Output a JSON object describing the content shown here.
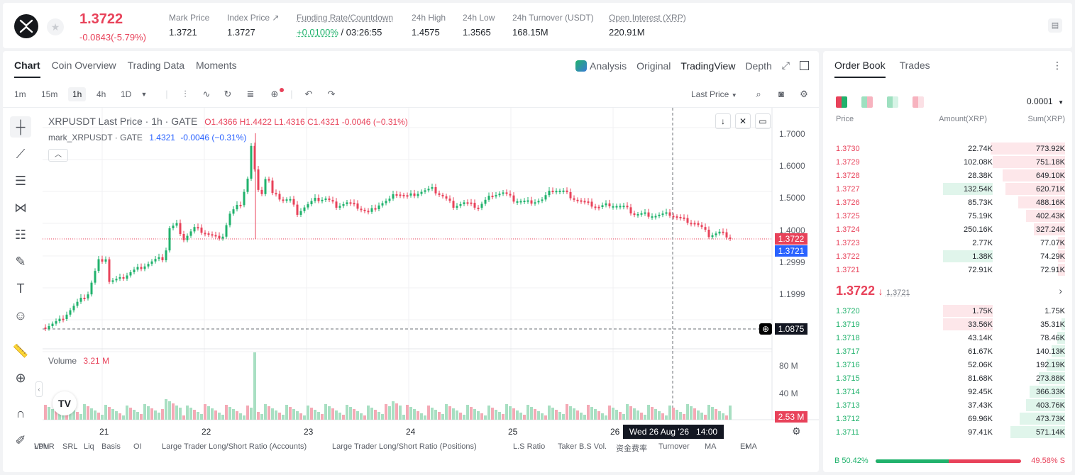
{
  "header": {
    "price": "1.3722",
    "change": "-0.0843(-5.79%)",
    "stats": [
      {
        "label": "Mark Price",
        "value": "1.3721"
      },
      {
        "label": "Index Price ↗",
        "value": "1.3727"
      },
      {
        "label": "Funding Rate/Countdown",
        "value": "+0.0100%",
        "value2": "/ 03:26:55"
      },
      {
        "label": "24h High",
        "value": "1.4575"
      },
      {
        "label": "24h Low",
        "value": "1.3565"
      },
      {
        "label": "24h Turnover (USDT)",
        "value": "168.15M"
      },
      {
        "label": "Open Interest (XRP)",
        "value": "220.91M"
      }
    ]
  },
  "tabs": [
    "Chart",
    "Coin Overview",
    "Trading Data",
    "Moments"
  ],
  "view_tabs": [
    "Analysis",
    "Original",
    "TradingView",
    "Depth"
  ],
  "timeframes": [
    "1m",
    "15m",
    "1h",
    "4h",
    "1D"
  ],
  "last_price_select": "Last Price",
  "legend": {
    "title": "XRPUSDT Last Price · 1h · GATE",
    "o": "O1.4366",
    "h": "H1.4422",
    "l": "L1.4316",
    "c": "C1.4321",
    "chg": "-0.0046 (−0.31%)",
    "mark_title": "mark_XRPUSDT · GATE",
    "mark_val": "1.4321",
    "mark_chg": "-0.0046 (−0.31%)"
  },
  "volume": {
    "label": "Volume",
    "value": "3.21 M",
    "last": "2.53 M"
  },
  "price_axis": [
    "1.7000",
    "1.6000",
    "1.5000",
    "1.4000",
    "1.2999",
    "1.1999"
  ],
  "vol_axis": [
    "80 M",
    "40 M"
  ],
  "price_tags": {
    "last": "1.3722",
    "mark": "1.3721",
    "cross": "1.0875"
  },
  "x_labels": [
    "21",
    "22",
    "23",
    "24",
    "25",
    "26"
  ],
  "crosshair_date": "Wed 26 Aug '26   14:00",
  "bottom_tabs": [
    "LPVR",
    "SRL",
    "Liq",
    "Basis",
    "OI",
    "Large Trader Long/Short Ratio (Accounts)",
    "Large Trader Long/Short Ratio (Positions)",
    "L.S Ratio",
    "Taker B.S Vol.",
    "资金费率",
    "Turnover",
    "MA",
    "EMA",
    "Volu"
  ],
  "orderbook": {
    "tabs": [
      "Order Book",
      "Trades"
    ],
    "precision": "0.0001",
    "headers": [
      "Price",
      "Amount(XRP)",
      "Sum(XRP)"
    ],
    "asks": [
      {
        "p": "1.3730",
        "a": "22.74K",
        "s": "773.92K"
      },
      {
        "p": "1.3729",
        "a": "102.08K",
        "s": "751.18K"
      },
      {
        "p": "1.3728",
        "a": "28.38K",
        "s": "649.10K"
      },
      {
        "p": "1.3727",
        "a": "132.54K",
        "s": "620.71K"
      },
      {
        "p": "1.3726",
        "a": "85.73K",
        "s": "488.16K"
      },
      {
        "p": "1.3725",
        "a": "75.19K",
        "s": "402.43K"
      },
      {
        "p": "1.3724",
        "a": "250.16K",
        "s": "327.24K"
      },
      {
        "p": "1.3723",
        "a": "2.77K",
        "s": "77.07K"
      },
      {
        "p": "1.3722",
        "a": "1.38K",
        "s": "74.29K"
      },
      {
        "p": "1.3721",
        "a": "72.91K",
        "s": "72.91K"
      }
    ],
    "mid_price": "1.3722",
    "mid_mark": "1.3721",
    "bids": [
      {
        "p": "1.3720",
        "a": "1.75K",
        "s": "1.75K"
      },
      {
        "p": "1.3719",
        "a": "33.56K",
        "s": "35.31K"
      },
      {
        "p": "1.3718",
        "a": "43.14K",
        "s": "78.46K"
      },
      {
        "p": "1.3717",
        "a": "61.67K",
        "s": "140.13K"
      },
      {
        "p": "1.3716",
        "a": "52.06K",
        "s": "192.19K"
      },
      {
        "p": "1.3715",
        "a": "81.68K",
        "s": "273.88K"
      },
      {
        "p": "1.3714",
        "a": "92.45K",
        "s": "366.33K"
      },
      {
        "p": "1.3713",
        "a": "37.43K",
        "s": "403.76K"
      },
      {
        "p": "1.3712",
        "a": "69.96K",
        "s": "473.73K"
      },
      {
        "p": "1.3711",
        "a": "97.41K",
        "s": "571.14K"
      }
    ],
    "buy_ratio": "B 50.42%",
    "sell_ratio": "49.58% S",
    "buy_pct": 50.42
  },
  "colors": {
    "up": "#20b26c",
    "down": "#e8425a"
  }
}
